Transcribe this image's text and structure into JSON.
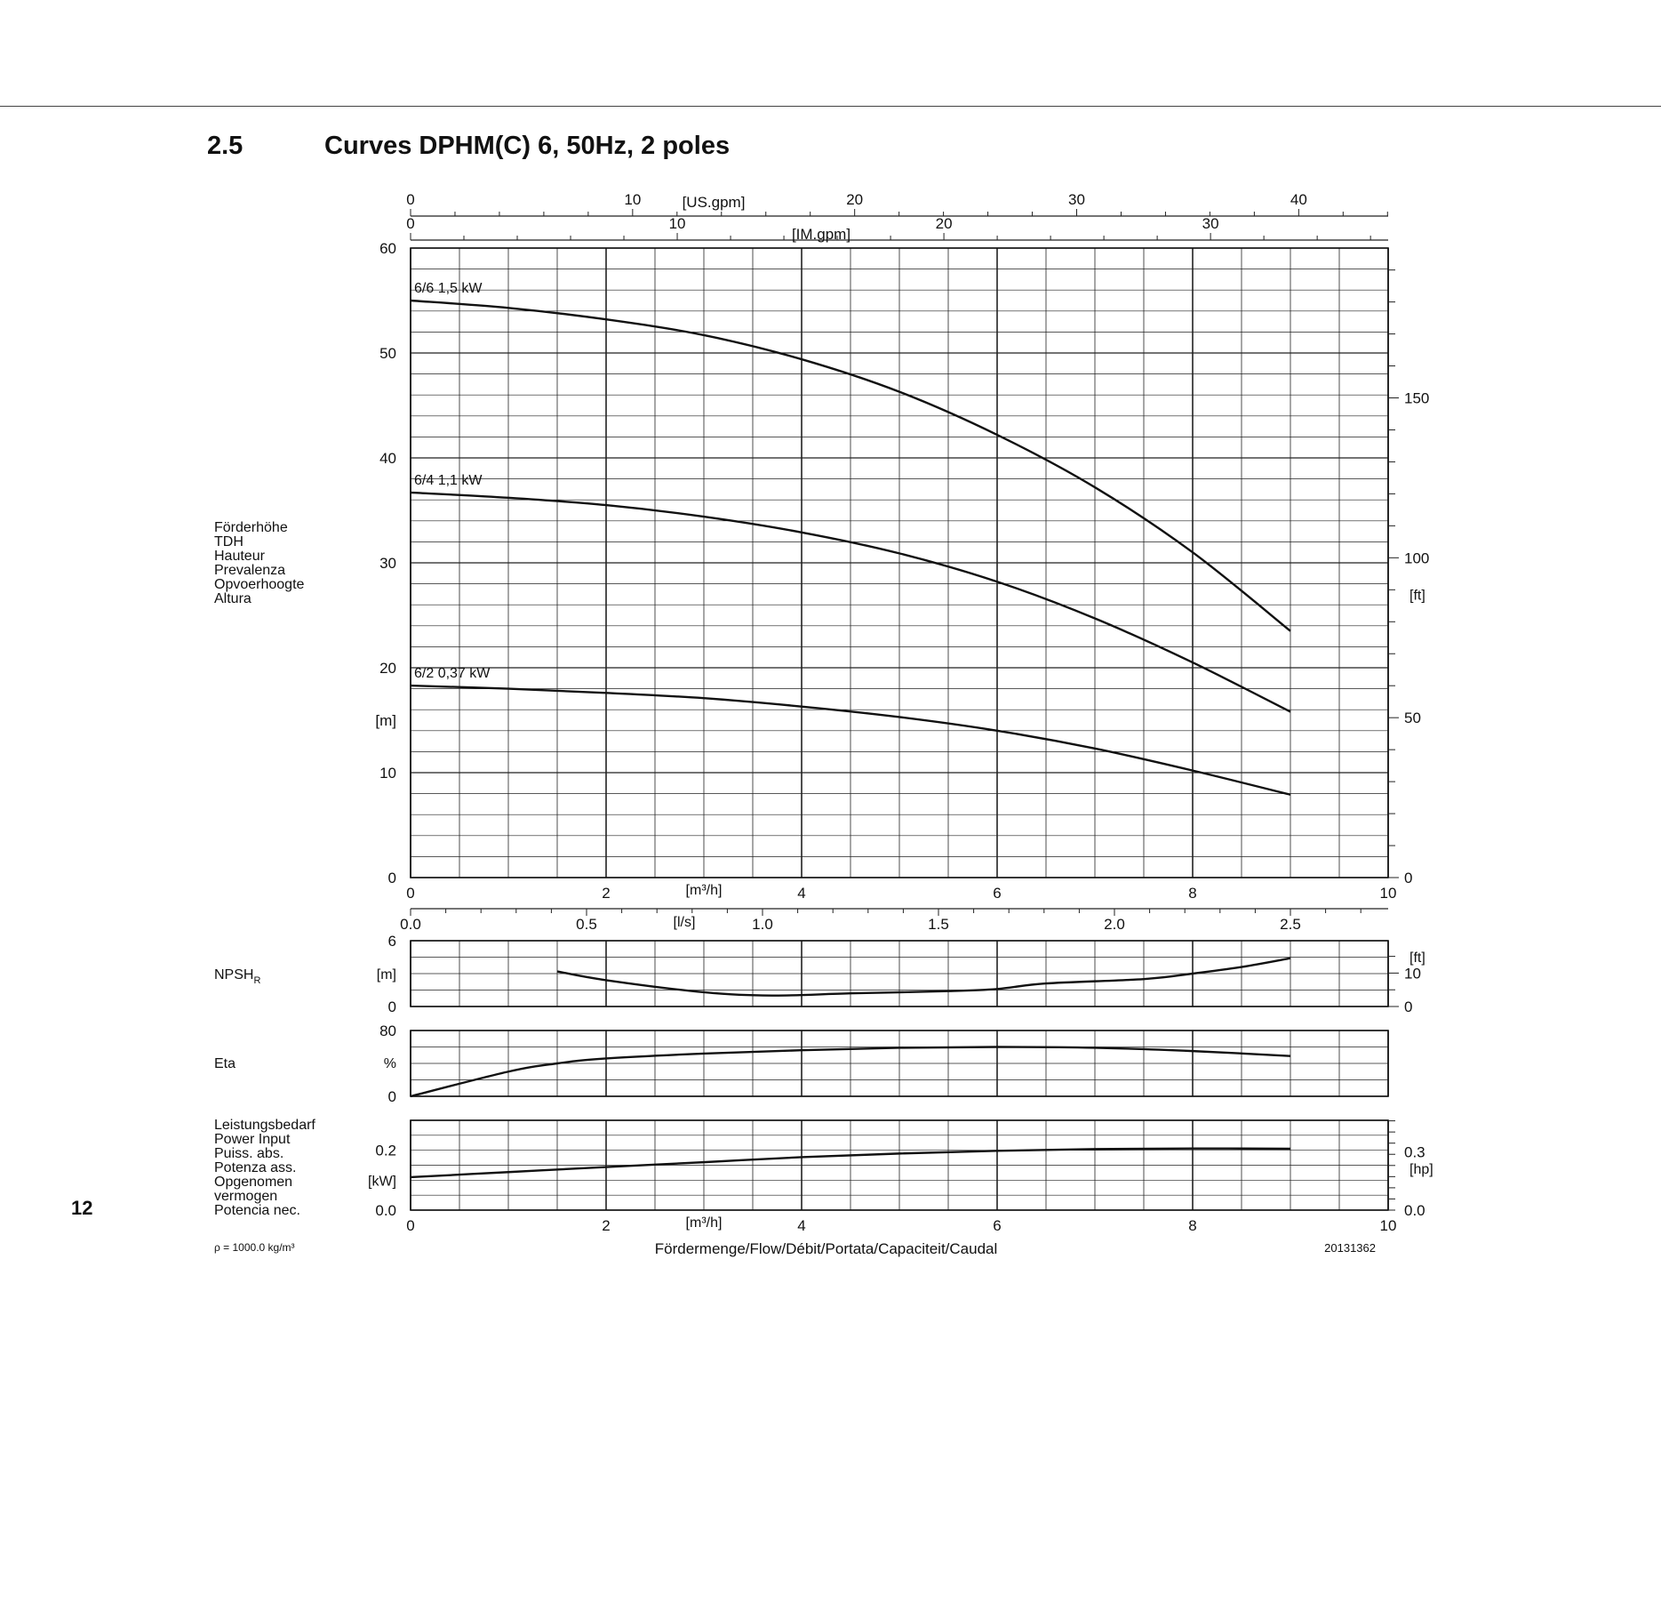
{
  "page": {
    "section_number": "2.5",
    "section_title": "Curves DPHM(C) 6, 50Hz, 2 poles",
    "page_number": "12"
  },
  "chart_data": [
    {
      "panel": "head",
      "type": "line",
      "x_unit": "[m³/h]",
      "xlim": [
        0,
        10
      ],
      "x_ticks": [
        0,
        2,
        4,
        6,
        8,
        10
      ],
      "y_unit": "[m]",
      "ylim": [
        0,
        60
      ],
      "y_ticks": [
        0,
        10,
        20,
        30,
        40,
        50,
        60
      ],
      "y_label_lines": [
        "Förderhöhe",
        "TDH",
        "Hauteur",
        "Prevalenza",
        "Opvoerhoogte",
        "Altura"
      ],
      "y2_unit": "[ft]",
      "y2_ticks": [
        0,
        50,
        100,
        150
      ],
      "top_axes": [
        {
          "unit": "[US.gpm]",
          "ticks": [
            0,
            10,
            20,
            30,
            40
          ]
        },
        {
          "unit": "[IM.gpm]",
          "ticks": [
            0,
            10,
            20,
            30
          ]
        }
      ],
      "grid": true,
      "series": [
        {
          "name": "6/6 1,5 kW",
          "x": [
            0,
            1,
            2,
            3,
            4,
            5,
            6,
            7,
            8,
            9
          ],
          "y": [
            55,
            54.3,
            53.2,
            51.7,
            49.4,
            46.3,
            42.2,
            37.2,
            31.0,
            23.5
          ]
        },
        {
          "name": "6/4 1,1 kW",
          "x": [
            0,
            1,
            2,
            3,
            4,
            5,
            6,
            7,
            8,
            9
          ],
          "y": [
            36.7,
            36.2,
            35.5,
            34.4,
            32.9,
            30.9,
            28.2,
            24.7,
            20.5,
            15.8
          ]
        },
        {
          "name": "6/2 0,37 kW",
          "x": [
            0,
            1,
            2,
            3,
            4,
            5,
            6,
            7,
            8,
            9
          ],
          "y": [
            18.3,
            18.0,
            17.6,
            17.1,
            16.3,
            15.3,
            14.0,
            12.3,
            10.2,
            7.9
          ]
        }
      ]
    },
    {
      "panel": "npsh",
      "type": "line",
      "x_unit": "[l/s]",
      "x_ticks": [
        "0.0",
        "0.5",
        "1.0",
        "1.5",
        "2.0",
        "2.5"
      ],
      "label": "NPSH",
      "label_sub": "R",
      "y_unit": "[m]",
      "ylim": [
        0,
        6
      ],
      "y_ticks": [
        0,
        6
      ],
      "y2_unit": "[ft]",
      "y2_ticks": [
        0,
        10
      ],
      "grid": true,
      "series": [
        {
          "x": [
            1.5,
            2,
            3,
            3.7,
            4.5,
            5.5,
            6,
            6.5,
            7.5,
            8,
            8.5,
            9
          ],
          "y": [
            3.2,
            2.4,
            1.3,
            1.0,
            1.2,
            1.4,
            1.6,
            2.1,
            2.5,
            3.0,
            3.6,
            4.4
          ]
        }
      ]
    },
    {
      "panel": "eta",
      "type": "line",
      "label": "Eta",
      "y_unit": "%",
      "ylim": [
        0,
        80
      ],
      "y_ticks": [
        0,
        80
      ],
      "grid": true,
      "series": [
        {
          "x": [
            0,
            1,
            1.5,
            2,
            3,
            4,
            5,
            6,
            7,
            8,
            9
          ],
          "y": [
            0,
            30,
            40,
            46,
            52,
            56,
            59,
            60,
            59,
            55,
            49
          ]
        }
      ]
    },
    {
      "panel": "power",
      "type": "line",
      "label_lines": [
        "Leistungsbedarf",
        "Power Input",
        "Puiss. abs.",
        "Potenza ass.",
        "Opgenomen",
        "vermogen",
        "Potencia nec."
      ],
      "x_unit": "[m³/h]",
      "xlim": [
        0,
        10
      ],
      "x_ticks": [
        0,
        2,
        4,
        6,
        8,
        10
      ],
      "y_unit": "[kW]",
      "ylim": [
        0,
        0.3
      ],
      "y_ticks": [
        "0.0",
        "0.2"
      ],
      "y2_unit": "[hp]",
      "y2_ticks": [
        "0.0",
        "0.3"
      ],
      "grid": true,
      "series": [
        {
          "x": [
            0,
            1,
            2,
            3,
            4,
            5,
            6,
            7,
            8,
            9
          ],
          "y": [
            0.11,
            0.127,
            0.144,
            0.16,
            0.177,
            0.189,
            0.198,
            0.204,
            0.206,
            0.205
          ]
        }
      ]
    }
  ],
  "footer": {
    "density": "ρ = 1000.0 kg/m³",
    "flow_label": "Fördermenge/Flow/Débit/Portata/Capaciteit/Caudal",
    "doc_code": "20131362"
  }
}
